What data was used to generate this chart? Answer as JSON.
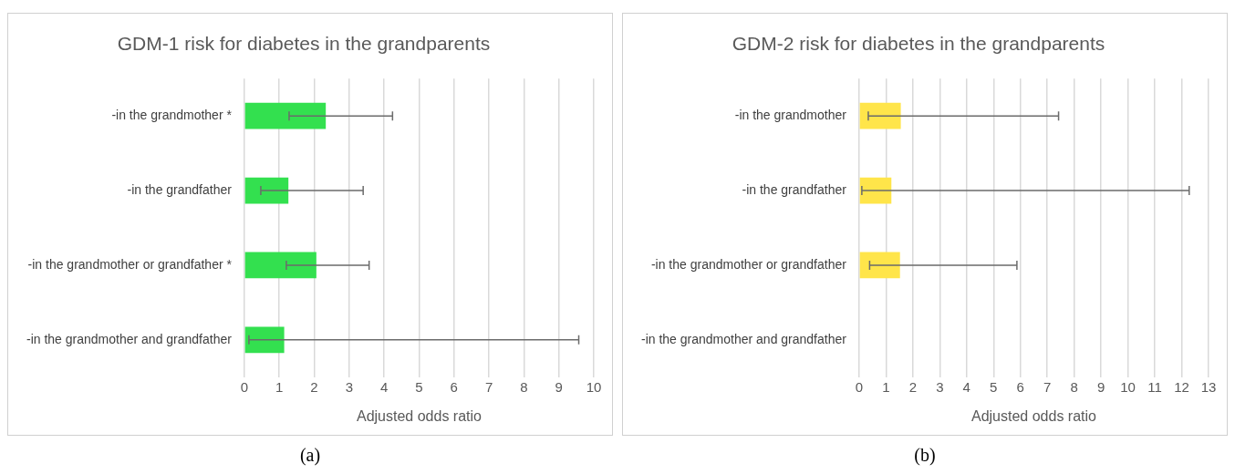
{
  "chart_data": [
    {
      "type": "bar",
      "orientation": "horizontal",
      "title": "GDM-1 risk for diabetes in the grandparents",
      "xlabel": "Adjusted odds ratio",
      "categories": [
        "-in the grandmother *",
        "-in the grandfather",
        "-in the grandmother or grandfather *",
        "-in the grandmother and grandfather"
      ],
      "values": [
        2.33,
        1.26,
        2.06,
        1.14
      ],
      "errors": [
        [
          1.28,
          4.24
        ],
        [
          0.47,
          3.4
        ],
        [
          1.2,
          3.57
        ],
        [
          0.13,
          9.57
        ]
      ],
      "color": "#33e04f",
      "xlim": [
        0,
        10
      ],
      "xticks": [
        0,
        1,
        2,
        3,
        4,
        5,
        6,
        7,
        8,
        9,
        10
      ],
      "grid": "x",
      "annotations": [
        "(a)"
      ]
    },
    {
      "type": "bar",
      "orientation": "horizontal",
      "title": "GDM-2 risk for diabetes in the grandparents",
      "xlabel": "Adjusted odds ratio",
      "categories": [
        "-in the grandmother",
        "-in the grandfather",
        "-in the grandmother or grandfather",
        "-in the grandmother and grandfather"
      ],
      "values": [
        1.55,
        1.2,
        1.52,
        null
      ],
      "errors": [
        [
          0.34,
          7.42
        ],
        [
          0.1,
          12.28
        ],
        [
          0.39,
          5.87
        ],
        null
      ],
      "color": "#ffe54a",
      "xlim": [
        0,
        13
      ],
      "xticks": [
        0,
        1,
        2,
        3,
        4,
        5,
        6,
        7,
        8,
        9,
        10,
        11,
        12,
        13
      ],
      "grid": "x",
      "annotations": [
        "(b)"
      ]
    }
  ]
}
